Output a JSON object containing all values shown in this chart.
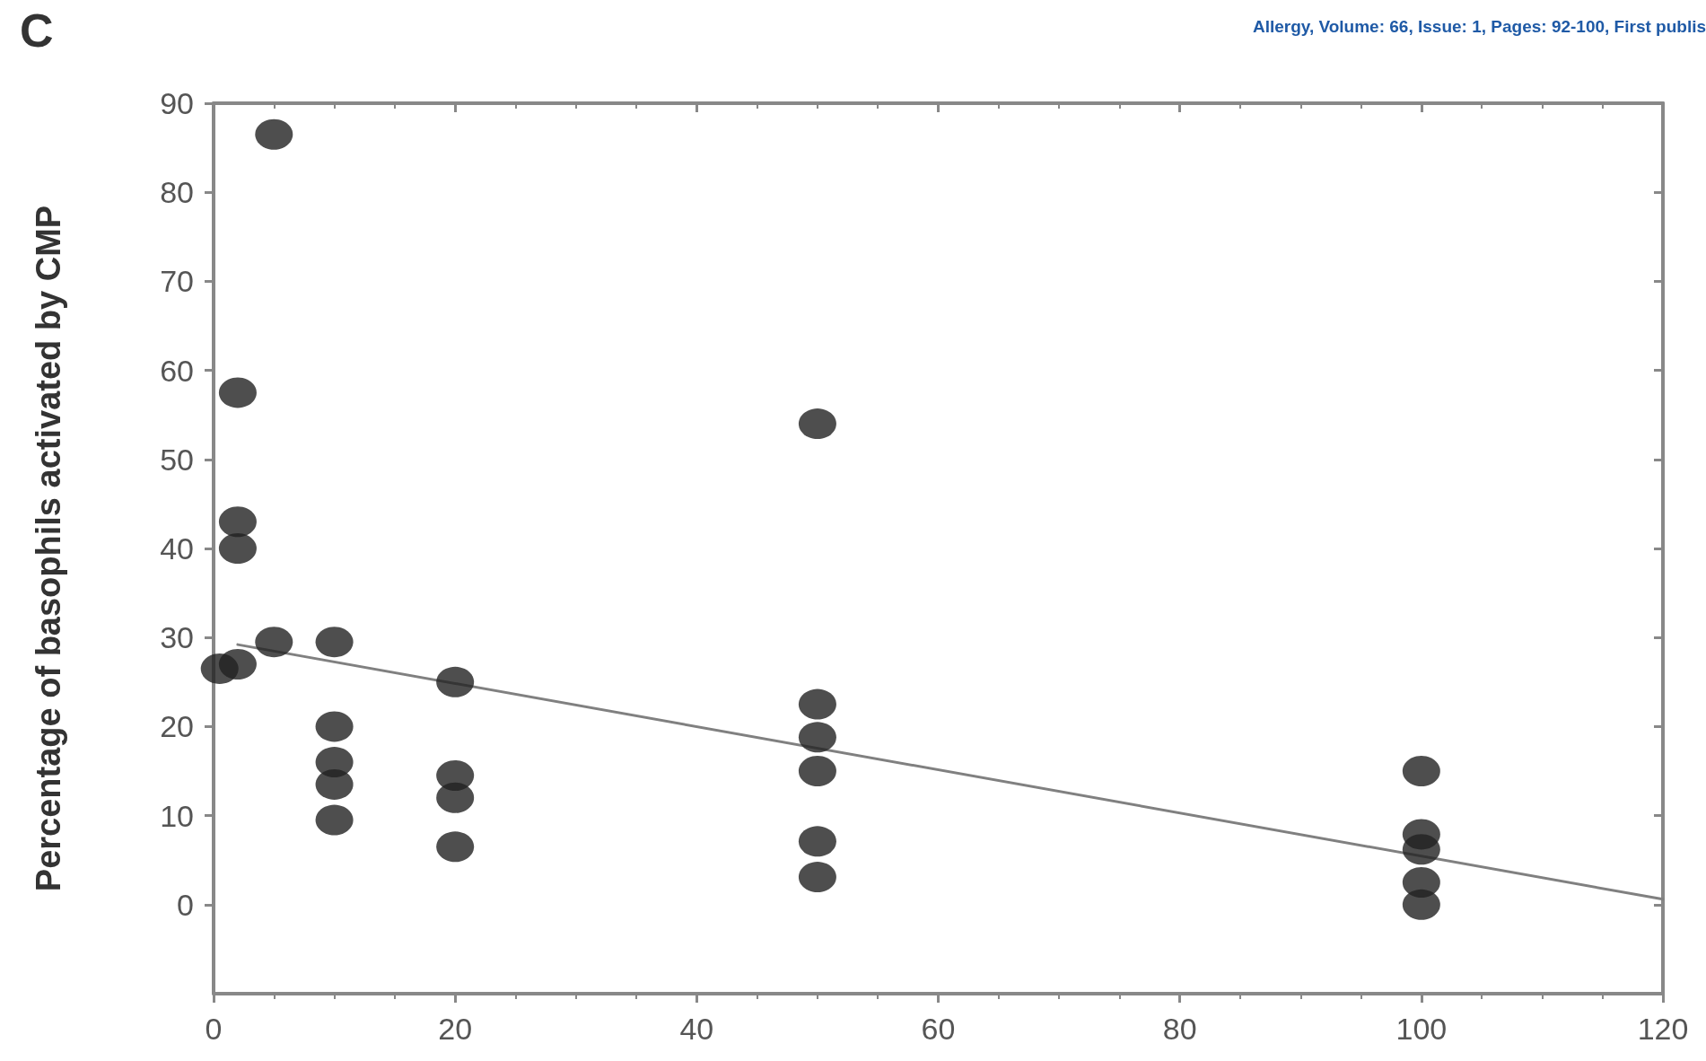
{
  "chart_data": {
    "type": "scatter",
    "ylabel": "Percentage of basophils activated by CMP",
    "annotations": [
      "C",
      "Allergy, Volume: 66, Issue: 1, Pages: 92-100, First publis"
    ],
    "marker": "circle",
    "grid": false,
    "xlim": [
      0,
      120
    ],
    "xticks": [
      0,
      20,
      40,
      60,
      80,
      100,
      120
    ],
    "ylim": [
      -10,
      90
    ],
    "yticks": [
      0,
      10,
      20,
      30,
      40,
      50,
      60,
      70,
      80,
      90
    ],
    "series": [
      {
        "color": "#222222",
        "x": [
          0.5,
          2,
          2,
          2,
          2,
          5,
          5,
          10,
          10,
          10,
          10,
          10,
          20,
          20,
          20,
          20,
          50,
          50,
          50,
          50,
          50,
          50,
          100,
          100,
          100,
          100,
          100
        ],
        "values": [
          26.5,
          27,
          40,
          43,
          57.5,
          86.5,
          29.5,
          29.5,
          20,
          16,
          13.5,
          9.5,
          25,
          14.5,
          12,
          6.5,
          54,
          22.5,
          18.8,
          15,
          7.1,
          3.1,
          15,
          7.9,
          6.2,
          2.5,
          0
        ]
      },
      {
        "type": "line",
        "color": "#808080",
        "marker": "none",
        "x": [
          2,
          120
        ],
        "values": [
          29.2,
          0.6
        ]
      }
    ]
  }
}
